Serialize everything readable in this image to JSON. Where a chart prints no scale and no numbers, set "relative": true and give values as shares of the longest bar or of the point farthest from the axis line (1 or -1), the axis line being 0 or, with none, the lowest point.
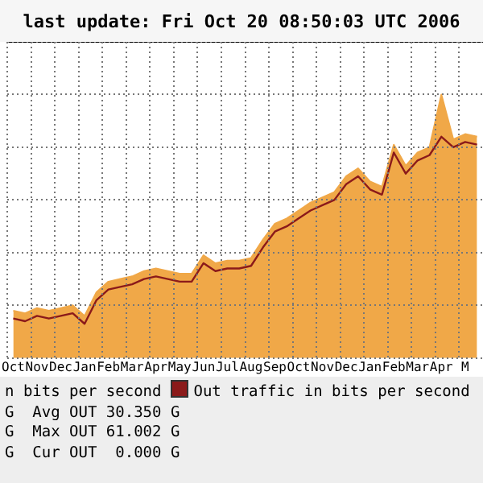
{
  "chart_data": {
    "type": "area",
    "title": "last update: Fri Oct 20 08:50:03 UTC 2006",
    "categories": [
      "Oct",
      null,
      "Nov",
      null,
      "Dec",
      null,
      "Jan",
      null,
      "Feb",
      null,
      "Mar",
      null,
      "Apr",
      null,
      "May",
      null,
      "Jun",
      null,
      "Jul",
      null,
      "Aug",
      null,
      "Sep",
      null,
      "Oct",
      null,
      "Nov",
      null,
      "Dec",
      null,
      "Jan",
      null,
      "Feb",
      null,
      "Mar",
      null,
      "Apr",
      null,
      "M",
      null
    ],
    "relative": true,
    "grid": true,
    "legend": "bottom",
    "series": [
      {
        "color": "#f0a848",
        "values": [
          0.18,
          0.17,
          0.19,
          0.18,
          0.19,
          0.2,
          0.16,
          0.25,
          0.29,
          0.3,
          0.31,
          0.33,
          0.34,
          0.33,
          0.32,
          0.32,
          0.39,
          0.36,
          0.37,
          0.37,
          0.38,
          0.45,
          0.51,
          0.53,
          0.56,
          0.59,
          0.61,
          0.63,
          0.69,
          0.72,
          0.67,
          0.65,
          0.81,
          0.73,
          0.78,
          0.8,
          1.0,
          0.83,
          0.85,
          0.84
        ]
      },
      {
        "type": "line",
        "name": "Out traffic in bits per second",
        "color": "#8b1a1a",
        "values": [
          0.15,
          0.14,
          0.16,
          0.15,
          0.16,
          0.17,
          0.13,
          0.22,
          0.26,
          0.27,
          0.28,
          0.3,
          0.31,
          0.3,
          0.29,
          0.29,
          0.36,
          0.33,
          0.34,
          0.34,
          0.35,
          0.42,
          0.48,
          0.5,
          0.53,
          0.56,
          0.58,
          0.6,
          0.66,
          0.69,
          0.64,
          0.62,
          0.78,
          0.7,
          0.75,
          0.77,
          0.84,
          0.8,
          0.82,
          0.81
        ]
      }
    ],
    "annotations": [
      "n bits per second",
      "G  Avg OUT 30.350 G",
      "G  Max OUT 61.002 G",
      "G  Cur OUT  0.000 G"
    ]
  }
}
